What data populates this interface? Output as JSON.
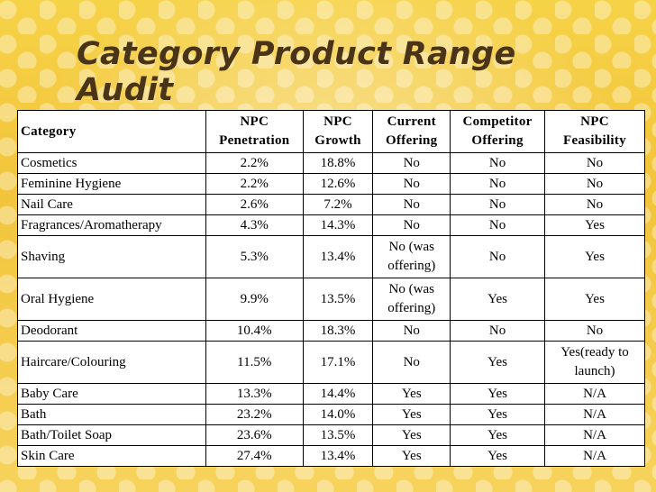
{
  "slide": {
    "title": "Category Product Range Audit"
  },
  "table": {
    "headers": {
      "category": "Category",
      "npc_penetration": [
        "NPC",
        "Penetration"
      ],
      "npc_growth": [
        "NPC",
        "Growth"
      ],
      "current_offering": [
        "Current",
        "Offering"
      ],
      "competitor_offering": [
        "Competitor",
        "Offering"
      ],
      "npc_feasibility": [
        "NPC",
        "Feasibility"
      ]
    },
    "rows": [
      {
        "category": "Cosmetics",
        "penetration": "2.2%",
        "growth": "18.8%",
        "current": "No",
        "competitor": "No",
        "feasibility": "No"
      },
      {
        "category": "Feminine Hygiene",
        "penetration": "2.2%",
        "growth": "12.6%",
        "current": "No",
        "competitor": "No",
        "feasibility": "No"
      },
      {
        "category": "Nail Care",
        "penetration": "2.6%",
        "growth": "7.2%",
        "current": "No",
        "competitor": "No",
        "feasibility": "No"
      },
      {
        "category": "Fragrances/Aromatherapy",
        "penetration": "4.3%",
        "growth": "14.3%",
        "current": "No",
        "competitor": "No",
        "feasibility": "Yes"
      },
      {
        "category": "Shaving",
        "penetration": "5.3%",
        "growth": "13.4%",
        "current": [
          "No (was",
          "offering)"
        ],
        "competitor": "No",
        "feasibility": "Yes"
      },
      {
        "category": "Oral Hygiene",
        "penetration": "9.9%",
        "growth": "13.5%",
        "current": [
          "No (was",
          "offering)"
        ],
        "competitor": "Yes",
        "feasibility": "Yes"
      },
      {
        "category": "Deodorant",
        "penetration": "10.4%",
        "growth": "18.3%",
        "current": "No",
        "competitor": "No",
        "feasibility": "No"
      },
      {
        "category": "Haircare/Colouring",
        "penetration": "11.5%",
        "growth": "17.1%",
        "current": "No",
        "competitor": "Yes",
        "feasibility": [
          "Yes(ready to",
          "launch)"
        ]
      },
      {
        "category": "Baby Care",
        "penetration": "13.3%",
        "growth": "14.4%",
        "current": "Yes",
        "competitor": "Yes",
        "feasibility": "N/A"
      },
      {
        "category": "Bath",
        "penetration": "23.2%",
        "growth": "14.0%",
        "current": "Yes",
        "competitor": "Yes",
        "feasibility": "N/A"
      },
      {
        "category": "Bath/Toilet Soap",
        "penetration": "23.6%",
        "growth": "13.5%",
        "current": "Yes",
        "competitor": "Yes",
        "feasibility": "N/A"
      },
      {
        "category": "Skin Care",
        "penetration": "27.4%",
        "growth": "13.4%",
        "current": "Yes",
        "competitor": "Yes",
        "feasibility": "N/A"
      }
    ]
  },
  "colors": {
    "background": "#f2c43a",
    "title": "#4a3418",
    "table_background": "#ffffff"
  }
}
